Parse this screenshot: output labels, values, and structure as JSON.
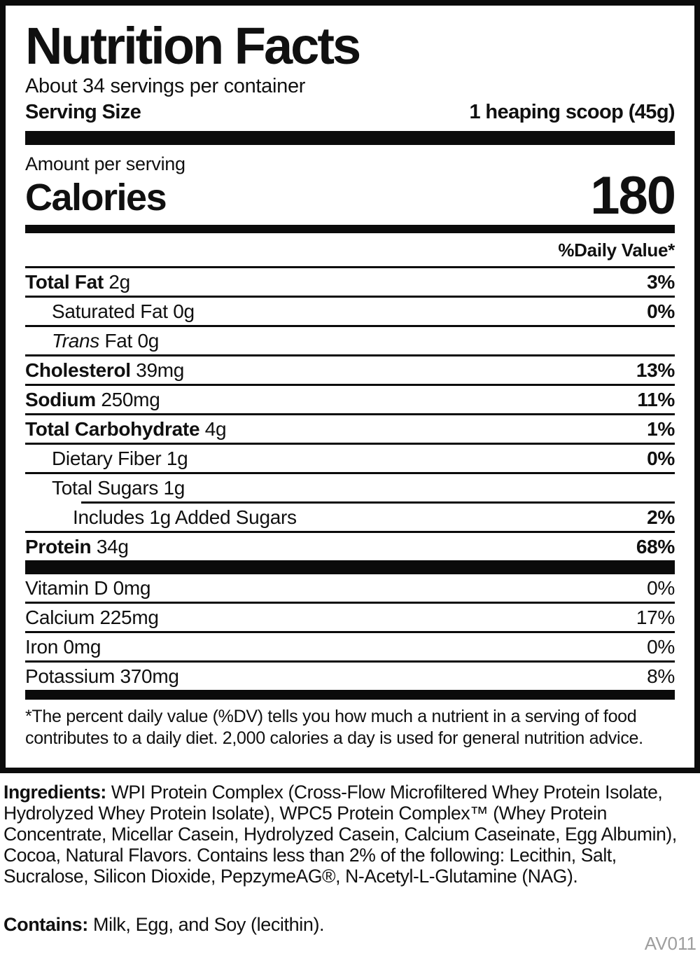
{
  "label": {
    "title": "Nutrition Facts",
    "servings_per_container": "About 34 servings per container",
    "serving_size_label": "Serving Size",
    "serving_size_value": "1 heaping scoop (45g)",
    "amount_per_serving": "Amount per serving",
    "calories_label": "Calories",
    "calories_value": "180",
    "daily_value_header": "%Daily Value*",
    "nutrients": [
      {
        "bold": "Total Fat",
        "italic": "",
        "normal": " 2g",
        "dv": "3%"
      },
      {
        "bold": "",
        "italic": "",
        "normal": "Saturated Fat 0g",
        "dv": "0%"
      },
      {
        "bold": "",
        "italic": "Trans",
        "normal": " Fat 0g",
        "dv": ""
      },
      {
        "bold": "Cholesterol",
        "italic": "",
        "normal": " 39mg",
        "dv": "13%"
      },
      {
        "bold": "Sodium",
        "italic": "",
        "normal": " 250mg",
        "dv": "11%"
      },
      {
        "bold": "Total Carbohydrate",
        "italic": "",
        "normal": " 4g",
        "dv": "1%"
      },
      {
        "bold": "",
        "italic": "",
        "normal": "Dietary Fiber 1g",
        "dv": "0%"
      },
      {
        "bold": "",
        "italic": "",
        "normal": "Total Sugars 1g",
        "dv": ""
      },
      {
        "bold": "",
        "italic": "",
        "normal": "Includes 1g Added Sugars",
        "dv": "2%"
      },
      {
        "bold": "Protein",
        "italic": "",
        "normal": " 34g",
        "dv": "68%"
      }
    ],
    "minerals": [
      {
        "text": "Vitamin D 0mg",
        "dv": "0%"
      },
      {
        "text": "Calcium 225mg",
        "dv": "17%"
      },
      {
        "text": "Iron 0mg",
        "dv": "0%"
      },
      {
        "text": "Potassium 370mg",
        "dv": "8%"
      }
    ],
    "footnote": "*The percent daily value (%DV) tells you how much a nutrient in a serving of food contributes to a daily diet. 2,000 calories a day is used for general nutrition advice."
  },
  "ingredients": {
    "heading": "Ingredients:",
    "text": " WPI Protein Complex (Cross-Flow Microfiltered Whey Protein Isolate, Hydrolyzed Whey Protein Isolate), WPC5 Protein Complex™ (Whey Protein Concentrate, Micellar Casein, Hydrolyzed Casein, Calcium Caseinate, Egg Albumin), Cocoa, Natural Flavors. Contains less than 2% of the following: Lecithin, Salt, Sucralose, Silicon Dioxide, PepzymeAG®, N-Acetyl-L-Glutamine (NAG)."
  },
  "contains": {
    "heading": "Contains:",
    "text": " Milk, Egg, and Soy (lecithin)."
  },
  "code": "AV011",
  "colors": {
    "ink": "#0b0b0b",
    "muted": "#9e9e9e",
    "background": "#ffffff"
  }
}
